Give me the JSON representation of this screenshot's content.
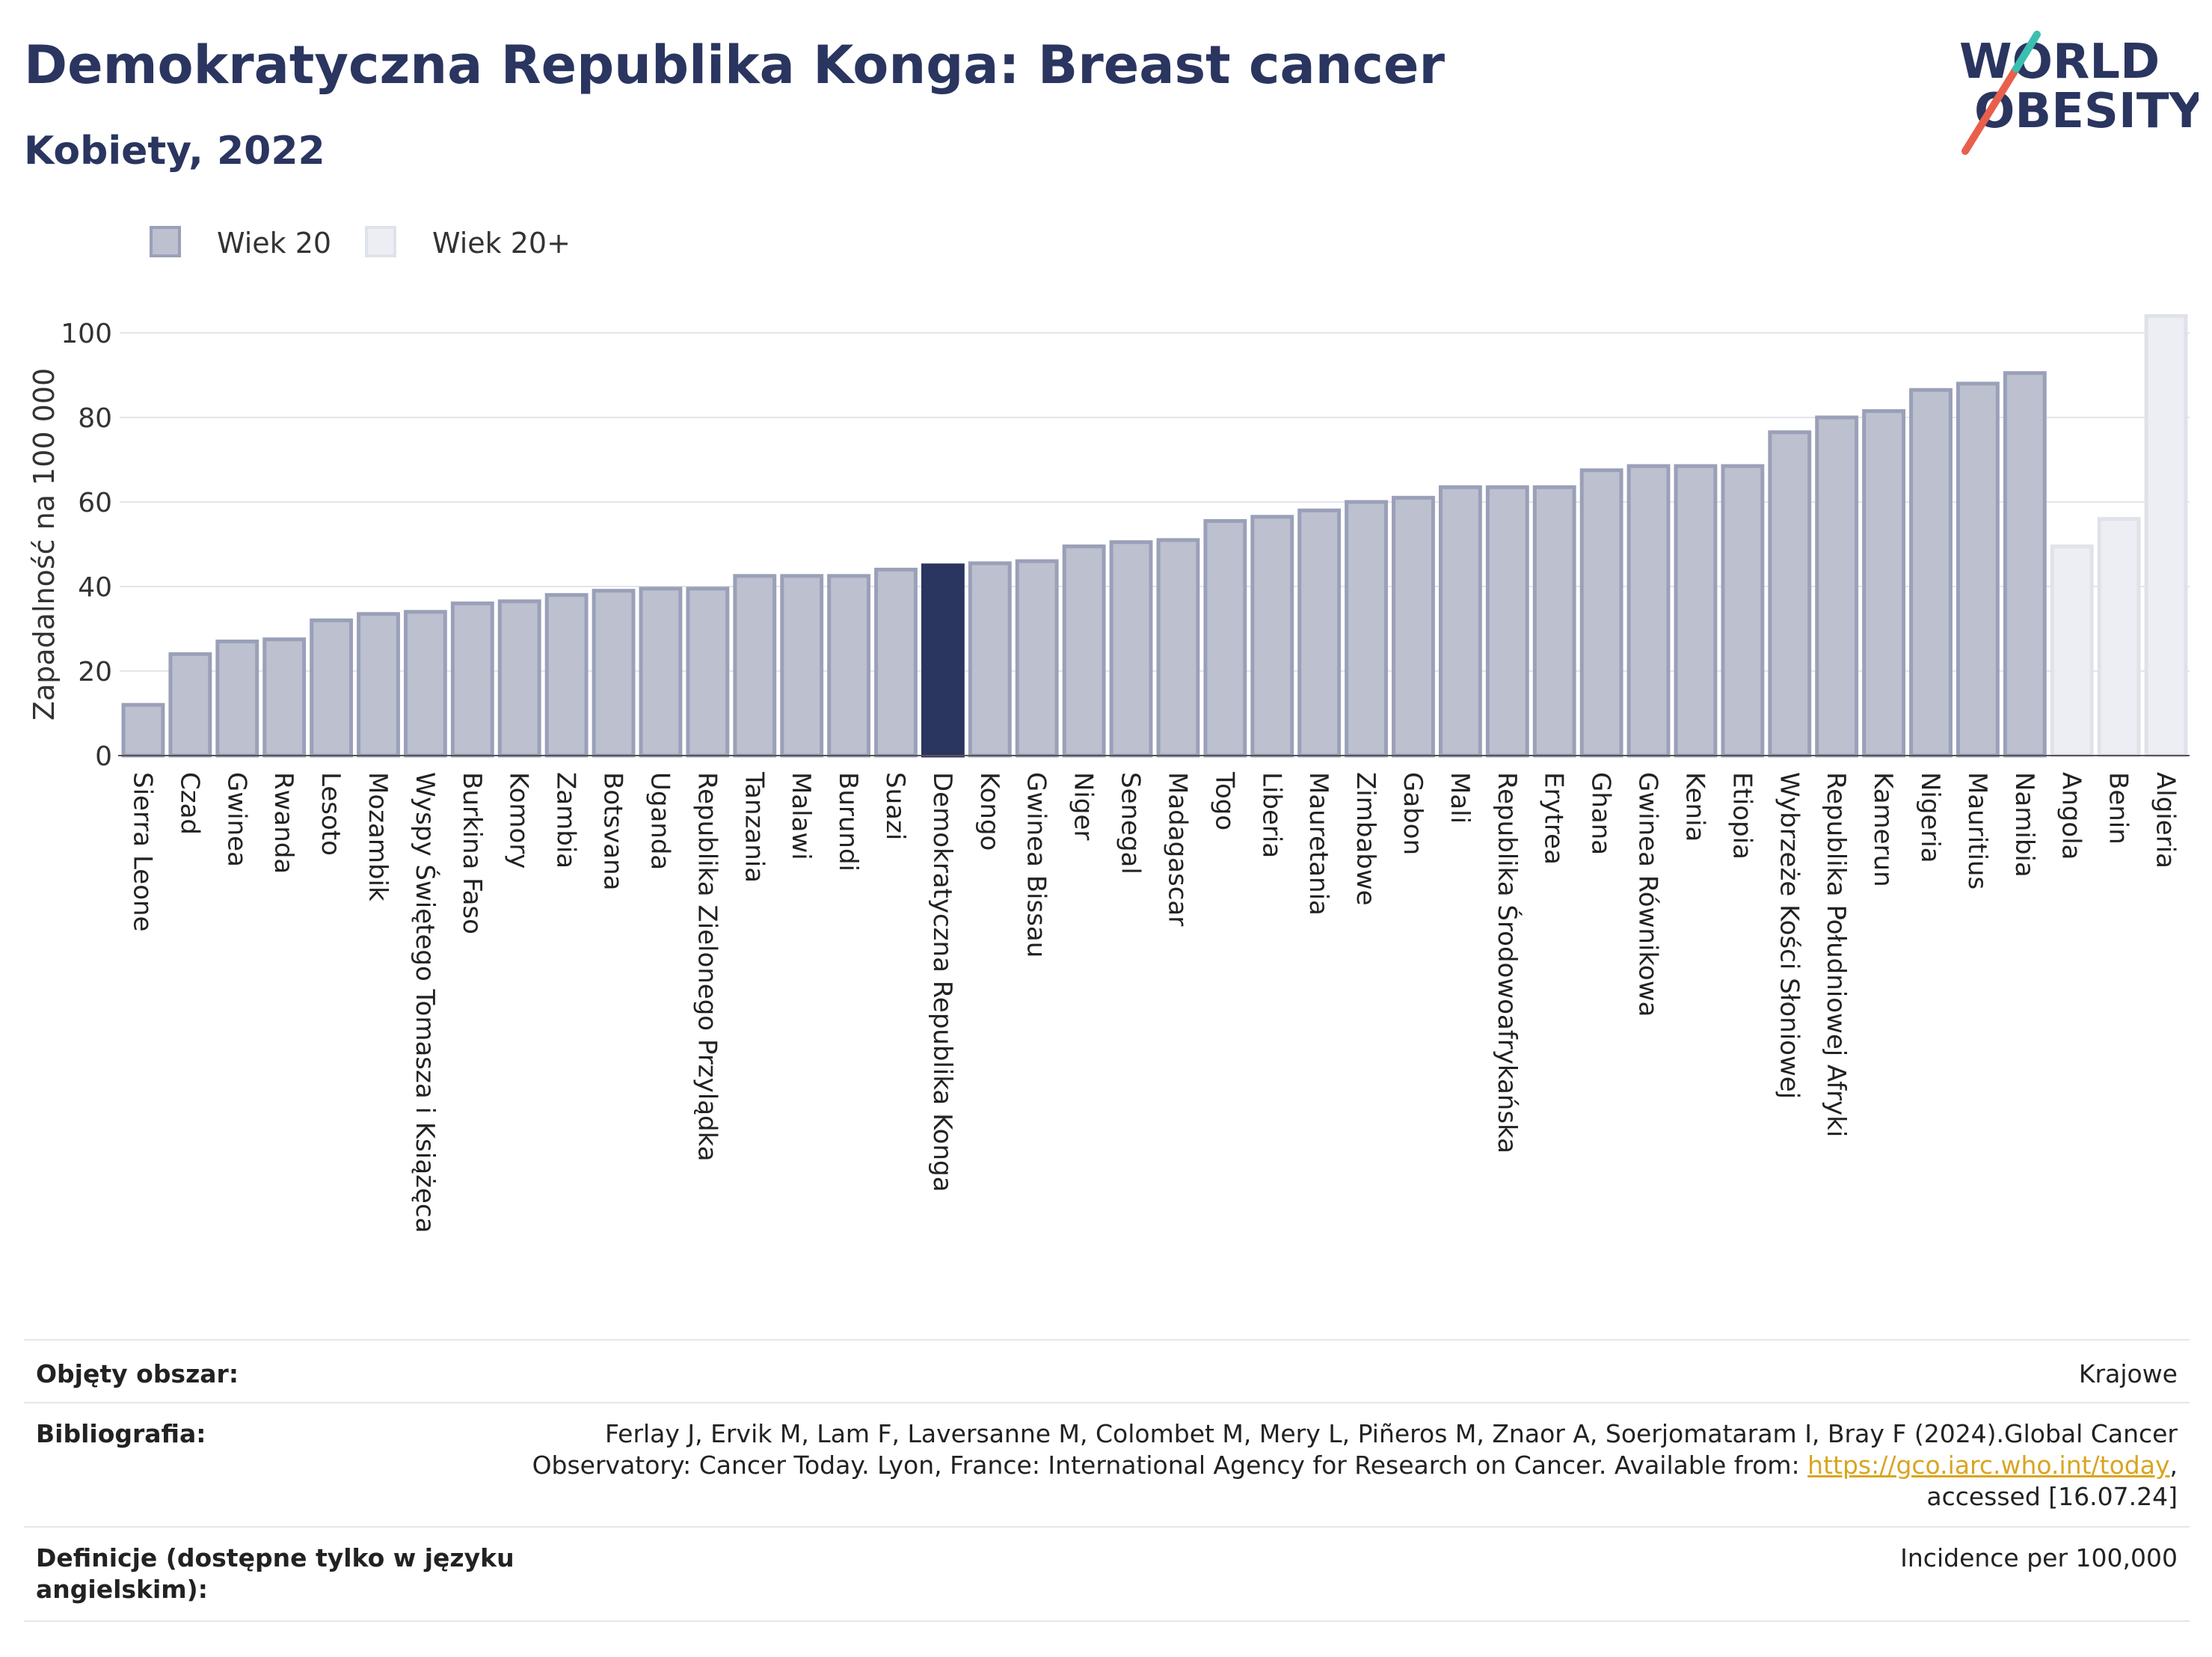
{
  "header": {
    "title": "Demokratyczna Republika Konga: Breast cancer",
    "subtitle": "Kobiety, 2022"
  },
  "logo": {
    "line1": "WORLD",
    "line2": "OBESITY",
    "accent_colors": [
      "#e8604c",
      "#3bbfb0"
    ]
  },
  "legend": [
    {
      "label": "Wiek 20",
      "color": "#bcc0cf"
    },
    {
      "label": "Wiek 20+",
      "color": "#eceef3"
    }
  ],
  "chart_data": {
    "type": "bar",
    "ylabel": "Zapadalność na 100 000",
    "ylim": [
      0,
      105
    ],
    "yticks": [
      0,
      20,
      40,
      60,
      80,
      100
    ],
    "grid": true,
    "highlight_color": "#2a3560",
    "categories": [
      "Sierra Leone",
      "Czad",
      "Gwinea",
      "Rwanda",
      "Lesoto",
      "Mozambik",
      "Wyspy Świętego Tomasza i Książęca",
      "Burkina Faso",
      "Komory",
      "Zambia",
      "Botsvana",
      "Uganda",
      "Republika Zielonego Przylądka",
      "Tanzania",
      "Malawi",
      "Burundi",
      "Suazi",
      "Demokratyczna Republika Konga",
      "Kongo",
      "Gwinea Bissau",
      "Niger",
      "Senegal",
      "Madagascar",
      "Togo",
      "Liberia",
      "Mauretania",
      "Zimbabwe",
      "Gabon",
      "Mali",
      "Republika Środowoafrykańska",
      "Erytrea",
      "Ghana",
      "Gwinea Równikowa",
      "Kenia",
      "Etiopia",
      "Wybrzeże Kości Słoniowej",
      "Republika Południowej Afryki",
      "Kamerun",
      "Nigeria",
      "Mauritius",
      "Namibia",
      "Angola",
      "Benin",
      "Algieria"
    ],
    "values": [
      12,
      24,
      27,
      27.5,
      32,
      33.5,
      34,
      36,
      36.5,
      38,
      39,
      39.5,
      39.5,
      42.5,
      42.5,
      42.5,
      44,
      45,
      45.5,
      46,
      49.5,
      50.5,
      51,
      55.5,
      56.5,
      58,
      60,
      61,
      63.5,
      63.5,
      63.5,
      67.5,
      68.5,
      68.5,
      68.5,
      76.5,
      80,
      81.5,
      86.5,
      88,
      90.5,
      49.5,
      56,
      104
    ],
    "series_group": [
      "Wiek 20",
      "Wiek 20",
      "Wiek 20",
      "Wiek 20",
      "Wiek 20",
      "Wiek 20",
      "Wiek 20",
      "Wiek 20",
      "Wiek 20",
      "Wiek 20",
      "Wiek 20",
      "Wiek 20",
      "Wiek 20",
      "Wiek 20",
      "Wiek 20",
      "Wiek 20",
      "Wiek 20",
      "Wiek 20",
      "Wiek 20",
      "Wiek 20",
      "Wiek 20",
      "Wiek 20",
      "Wiek 20",
      "Wiek 20",
      "Wiek 20",
      "Wiek 20",
      "Wiek 20",
      "Wiek 20",
      "Wiek 20",
      "Wiek 20",
      "Wiek 20",
      "Wiek 20",
      "Wiek 20",
      "Wiek 20",
      "Wiek 20",
      "Wiek 20",
      "Wiek 20",
      "Wiek 20",
      "Wiek 20",
      "Wiek 20",
      "Wiek 20",
      "Wiek 20+",
      "Wiek 20+",
      "Wiek 20+"
    ],
    "highlight": "Demokratyczna Republika Konga"
  },
  "info_table": {
    "coverage_label": "Objęty obszar:",
    "coverage_value": "Krajowe",
    "bibliography_label": "Bibliografia:",
    "bibliography_line1": "Ferlay J, Ervik M, Lam F, Laversanne M, Colombet M, Mery L, Piñeros M, Znaor A, Soerjomataram I, Bray F (2024).Global Cancer",
    "bibliography_line2": "Observatory: Cancer Today. Lyon, France: International Agency for Research on Cancer. Available from: ",
    "bibliography_link": "https://gco.iarc.who.int/today",
    "bibliography_line3": "accessed [16.07.24]",
    "definitions_label_line1": "Definicje (dostępne tylko w języku",
    "definitions_label_line2": "angielskim):",
    "definitions_value": "Incidence per 100,000"
  }
}
